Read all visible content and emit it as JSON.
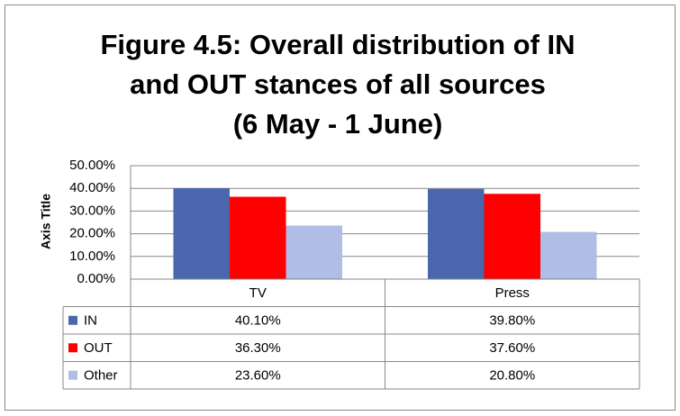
{
  "chart_data": {
    "type": "bar",
    "title": [
      "Figure 4.5: Overall distribution of IN",
      "and OUT stances of all sources",
      "(6 May - 1 June)"
    ],
    "y_axis_label": "Axis Title",
    "categories": [
      "TV",
      "Press"
    ],
    "series": [
      {
        "name": "IN",
        "color": "#4a66ac",
        "values": [
          40.1,
          39.8
        ],
        "value_labels": [
          "40.10%",
          "39.80%"
        ]
      },
      {
        "name": "OUT",
        "color": "#ff0000",
        "values": [
          36.3,
          37.6
        ],
        "value_labels": [
          "36.30%",
          "37.60%"
        ]
      },
      {
        "name": "Other",
        "color": "#b0bde4",
        "values": [
          23.6,
          20.8
        ],
        "value_labels": [
          "23.60%",
          "20.80%"
        ]
      }
    ],
    "ylim": [
      0,
      50
    ],
    "yticks": [
      {
        "value": 0,
        "label": "0.00%"
      },
      {
        "value": 10,
        "label": "10.00%"
      },
      {
        "value": 20,
        "label": "20.00%"
      },
      {
        "value": 30,
        "label": "30.00%"
      },
      {
        "value": 40,
        "label": "40.00%"
      },
      {
        "value": 50,
        "label": "50.00%"
      }
    ],
    "grid": true
  }
}
